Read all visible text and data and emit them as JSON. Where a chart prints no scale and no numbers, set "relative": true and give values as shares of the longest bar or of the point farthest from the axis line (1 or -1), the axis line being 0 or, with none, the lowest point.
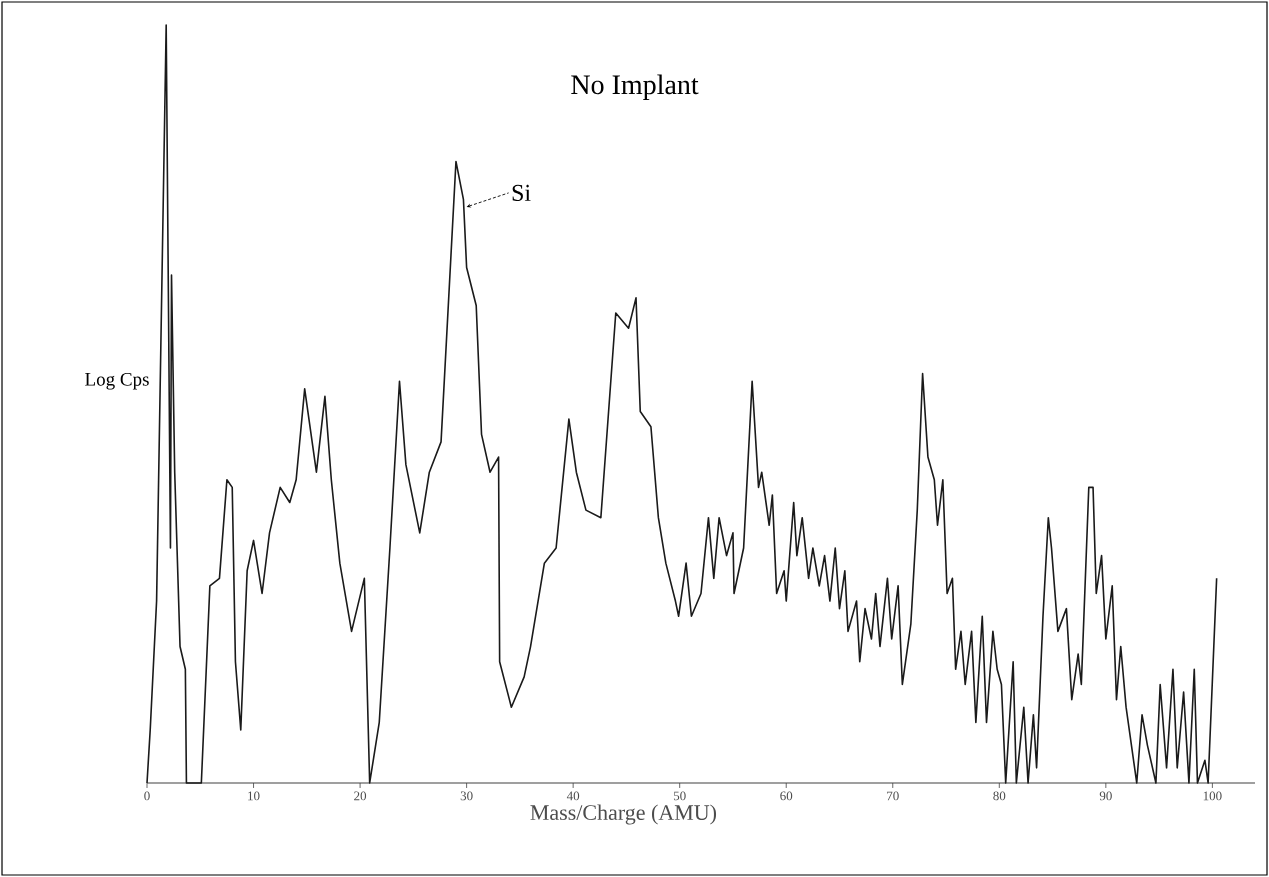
{
  "chart_data": {
    "type": "line",
    "title": "No Implant",
    "xlabel": "Mass/Charge (AMU)",
    "ylabel": "Log Cps",
    "relative": true,
    "xlim": [
      0,
      104
    ],
    "xticks": [
      0,
      10,
      20,
      30,
      40,
      50,
      60,
      70,
      80,
      90,
      100
    ],
    "annotations": [
      {
        "text": "Si",
        "x": 30.0,
        "y": 0.76
      }
    ],
    "series": [
      {
        "color": "#1a1a1a",
        "x": [
          0,
          0.3,
          0.9,
          1.8,
          2.2,
          2.3,
          2.6,
          3.1,
          3.6,
          3.7,
          5.1,
          5.9,
          6.8,
          7.5,
          8.0,
          8.3,
          8.8,
          9.4,
          10.0,
          10.8,
          11.5,
          12.5,
          13.4,
          14.0,
          14.8,
          15.9,
          16.7,
          17.3,
          18.1,
          19.2,
          20.4,
          20.9,
          21.8,
          22.8,
          23.7,
          24.3,
          25.6,
          26.5,
          27.6,
          29.0,
          29.7,
          30.0,
          30.9,
          31.4,
          32.2,
          33.0,
          33.1,
          34.2,
          35.4,
          36.0,
          37.3,
          38.4,
          39.6,
          40.3,
          41.2,
          42.6,
          44.0,
          45.2,
          45.9,
          46.3,
          47.3,
          48.0,
          48.7,
          49.6,
          49.9,
          50.6,
          51.1,
          52.0,
          52.7,
          53.2,
          53.7,
          54.4,
          55.0,
          55.1,
          56.0,
          56.8,
          57.4,
          57.7,
          58.4,
          58.7,
          59.1,
          59.8,
          60.0,
          60.7,
          61.0,
          61.5,
          62.1,
          62.5,
          63.1,
          63.6,
          64.1,
          64.6,
          65.0,
          65.5,
          65.8,
          66.6,
          66.9,
          67.4,
          68.0,
          68.4,
          68.8,
          69.5,
          69.9,
          70.5,
          70.9,
          71.7,
          72.3,
          72.8,
          73.3,
          73.9,
          74.2,
          74.7,
          75.1,
          75.6,
          75.9,
          76.4,
          76.8,
          77.4,
          77.8,
          78.4,
          78.8,
          79.4,
          79.8,
          80.2,
          80.6,
          81.3,
          81.6,
          82.3,
          82.7,
          83.2,
          83.5,
          84.1,
          84.6,
          84.9,
          85.5,
          86.3,
          86.8,
          87.4,
          87.7,
          88.4,
          88.8,
          89.1,
          89.6,
          90.0,
          90.6,
          91.0,
          91.4,
          91.9,
          92.9,
          93.4,
          93.9,
          94.7,
          95.1,
          95.7,
          96.3,
          96.7,
          97.3,
          97.8,
          98.3,
          98.6,
          99.3,
          99.6,
          100.4
        ],
        "values": [
          0,
          0.07,
          0.24,
          1.0,
          0.31,
          0.67,
          0.41,
          0.18,
          0.15,
          0,
          0,
          0.26,
          0.27,
          0.4,
          0.39,
          0.16,
          0.07,
          0.28,
          0.32,
          0.25,
          0.33,
          0.39,
          0.37,
          0.4,
          0.52,
          0.41,
          0.51,
          0.4,
          0.29,
          0.2,
          0.27,
          0,
          0.08,
          0.31,
          0.53,
          0.42,
          0.33,
          0.41,
          0.45,
          0.82,
          0.77,
          0.68,
          0.63,
          0.46,
          0.41,
          0.43,
          0.16,
          0.1,
          0.14,
          0.18,
          0.29,
          0.31,
          0.48,
          0.41,
          0.36,
          0.35,
          0.62,
          0.6,
          0.64,
          0.49,
          0.47,
          0.35,
          0.29,
          0.24,
          0.22,
          0.29,
          0.22,
          0.25,
          0.35,
          0.27,
          0.35,
          0.3,
          0.33,
          0.25,
          0.31,
          0.53,
          0.39,
          0.41,
          0.34,
          0.38,
          0.25,
          0.28,
          0.24,
          0.37,
          0.3,
          0.35,
          0.27,
          0.31,
          0.26,
          0.3,
          0.24,
          0.31,
          0.23,
          0.28,
          0.2,
          0.24,
          0.16,
          0.23,
          0.19,
          0.25,
          0.18,
          0.27,
          0.19,
          0.26,
          0.13,
          0.21,
          0.36,
          0.54,
          0.43,
          0.4,
          0.34,
          0.4,
          0.25,
          0.27,
          0.15,
          0.2,
          0.13,
          0.2,
          0.08,
          0.22,
          0.08,
          0.2,
          0.15,
          0.13,
          0,
          0.16,
          0,
          0.1,
          0,
          0.09,
          0.02,
          0.22,
          0.35,
          0.31,
          0.2,
          0.23,
          0.11,
          0.17,
          0.13,
          0.39,
          0.39,
          0.25,
          0.3,
          0.19,
          0.26,
          0.11,
          0.18,
          0.1,
          0,
          0.09,
          0.05,
          0,
          0.13,
          0.02,
          0.15,
          0.02,
          0.12,
          0,
          0.15,
          0,
          0.03,
          0,
          0.27
        ]
      }
    ]
  }
}
